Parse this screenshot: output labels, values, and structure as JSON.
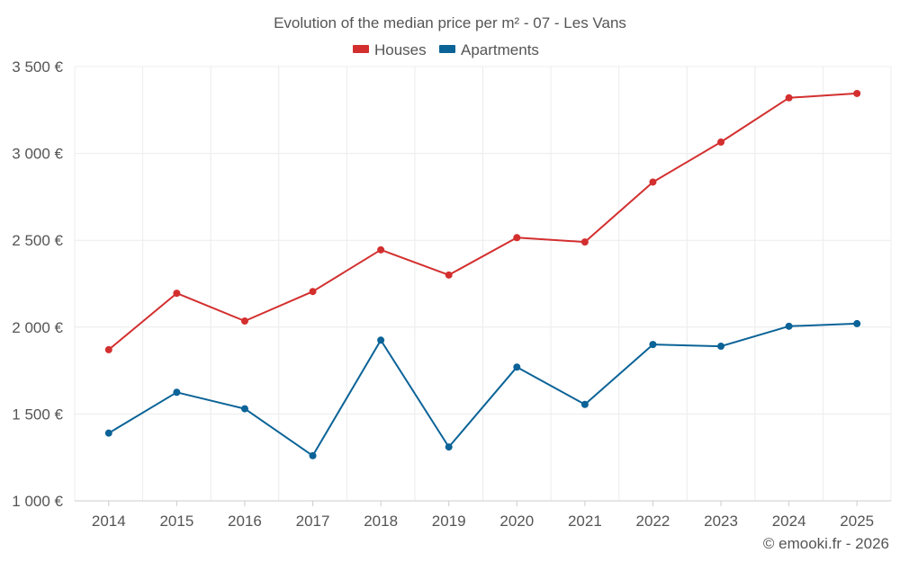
{
  "chart_data": {
    "type": "line",
    "title": "Evolution of the median price per m² - 07 - Les Vans",
    "categories": [
      "2014",
      "2015",
      "2016",
      "2017",
      "2018",
      "2019",
      "2020",
      "2021",
      "2022",
      "2023",
      "2024",
      "2025"
    ],
    "series": [
      {
        "name": "Houses",
        "color": "#d32f2f",
        "values": [
          1870,
          2195,
          2035,
          2205,
          2445,
          2300,
          2515,
          2490,
          2835,
          3065,
          3320,
          3345
        ]
      },
      {
        "name": "Apartments",
        "color": "#0b6397",
        "values": [
          1390,
          1625,
          1530,
          1260,
          1925,
          1310,
          1770,
          1555,
          1900,
          1890,
          2005,
          2020
        ]
      }
    ],
    "ylim": [
      1000,
      3500
    ],
    "yticks": [
      1000,
      1500,
      2000,
      2500,
      3000,
      3500
    ],
    "ytick_labels": [
      "1 000 €",
      "1 500 €",
      "2 000 €",
      "2 500 €",
      "3 000 €",
      "3 500 €"
    ],
    "xlabel": "",
    "ylabel": "",
    "legend_position": "top-center",
    "grid": true
  },
  "credit": "© emooki.fr - 2026"
}
